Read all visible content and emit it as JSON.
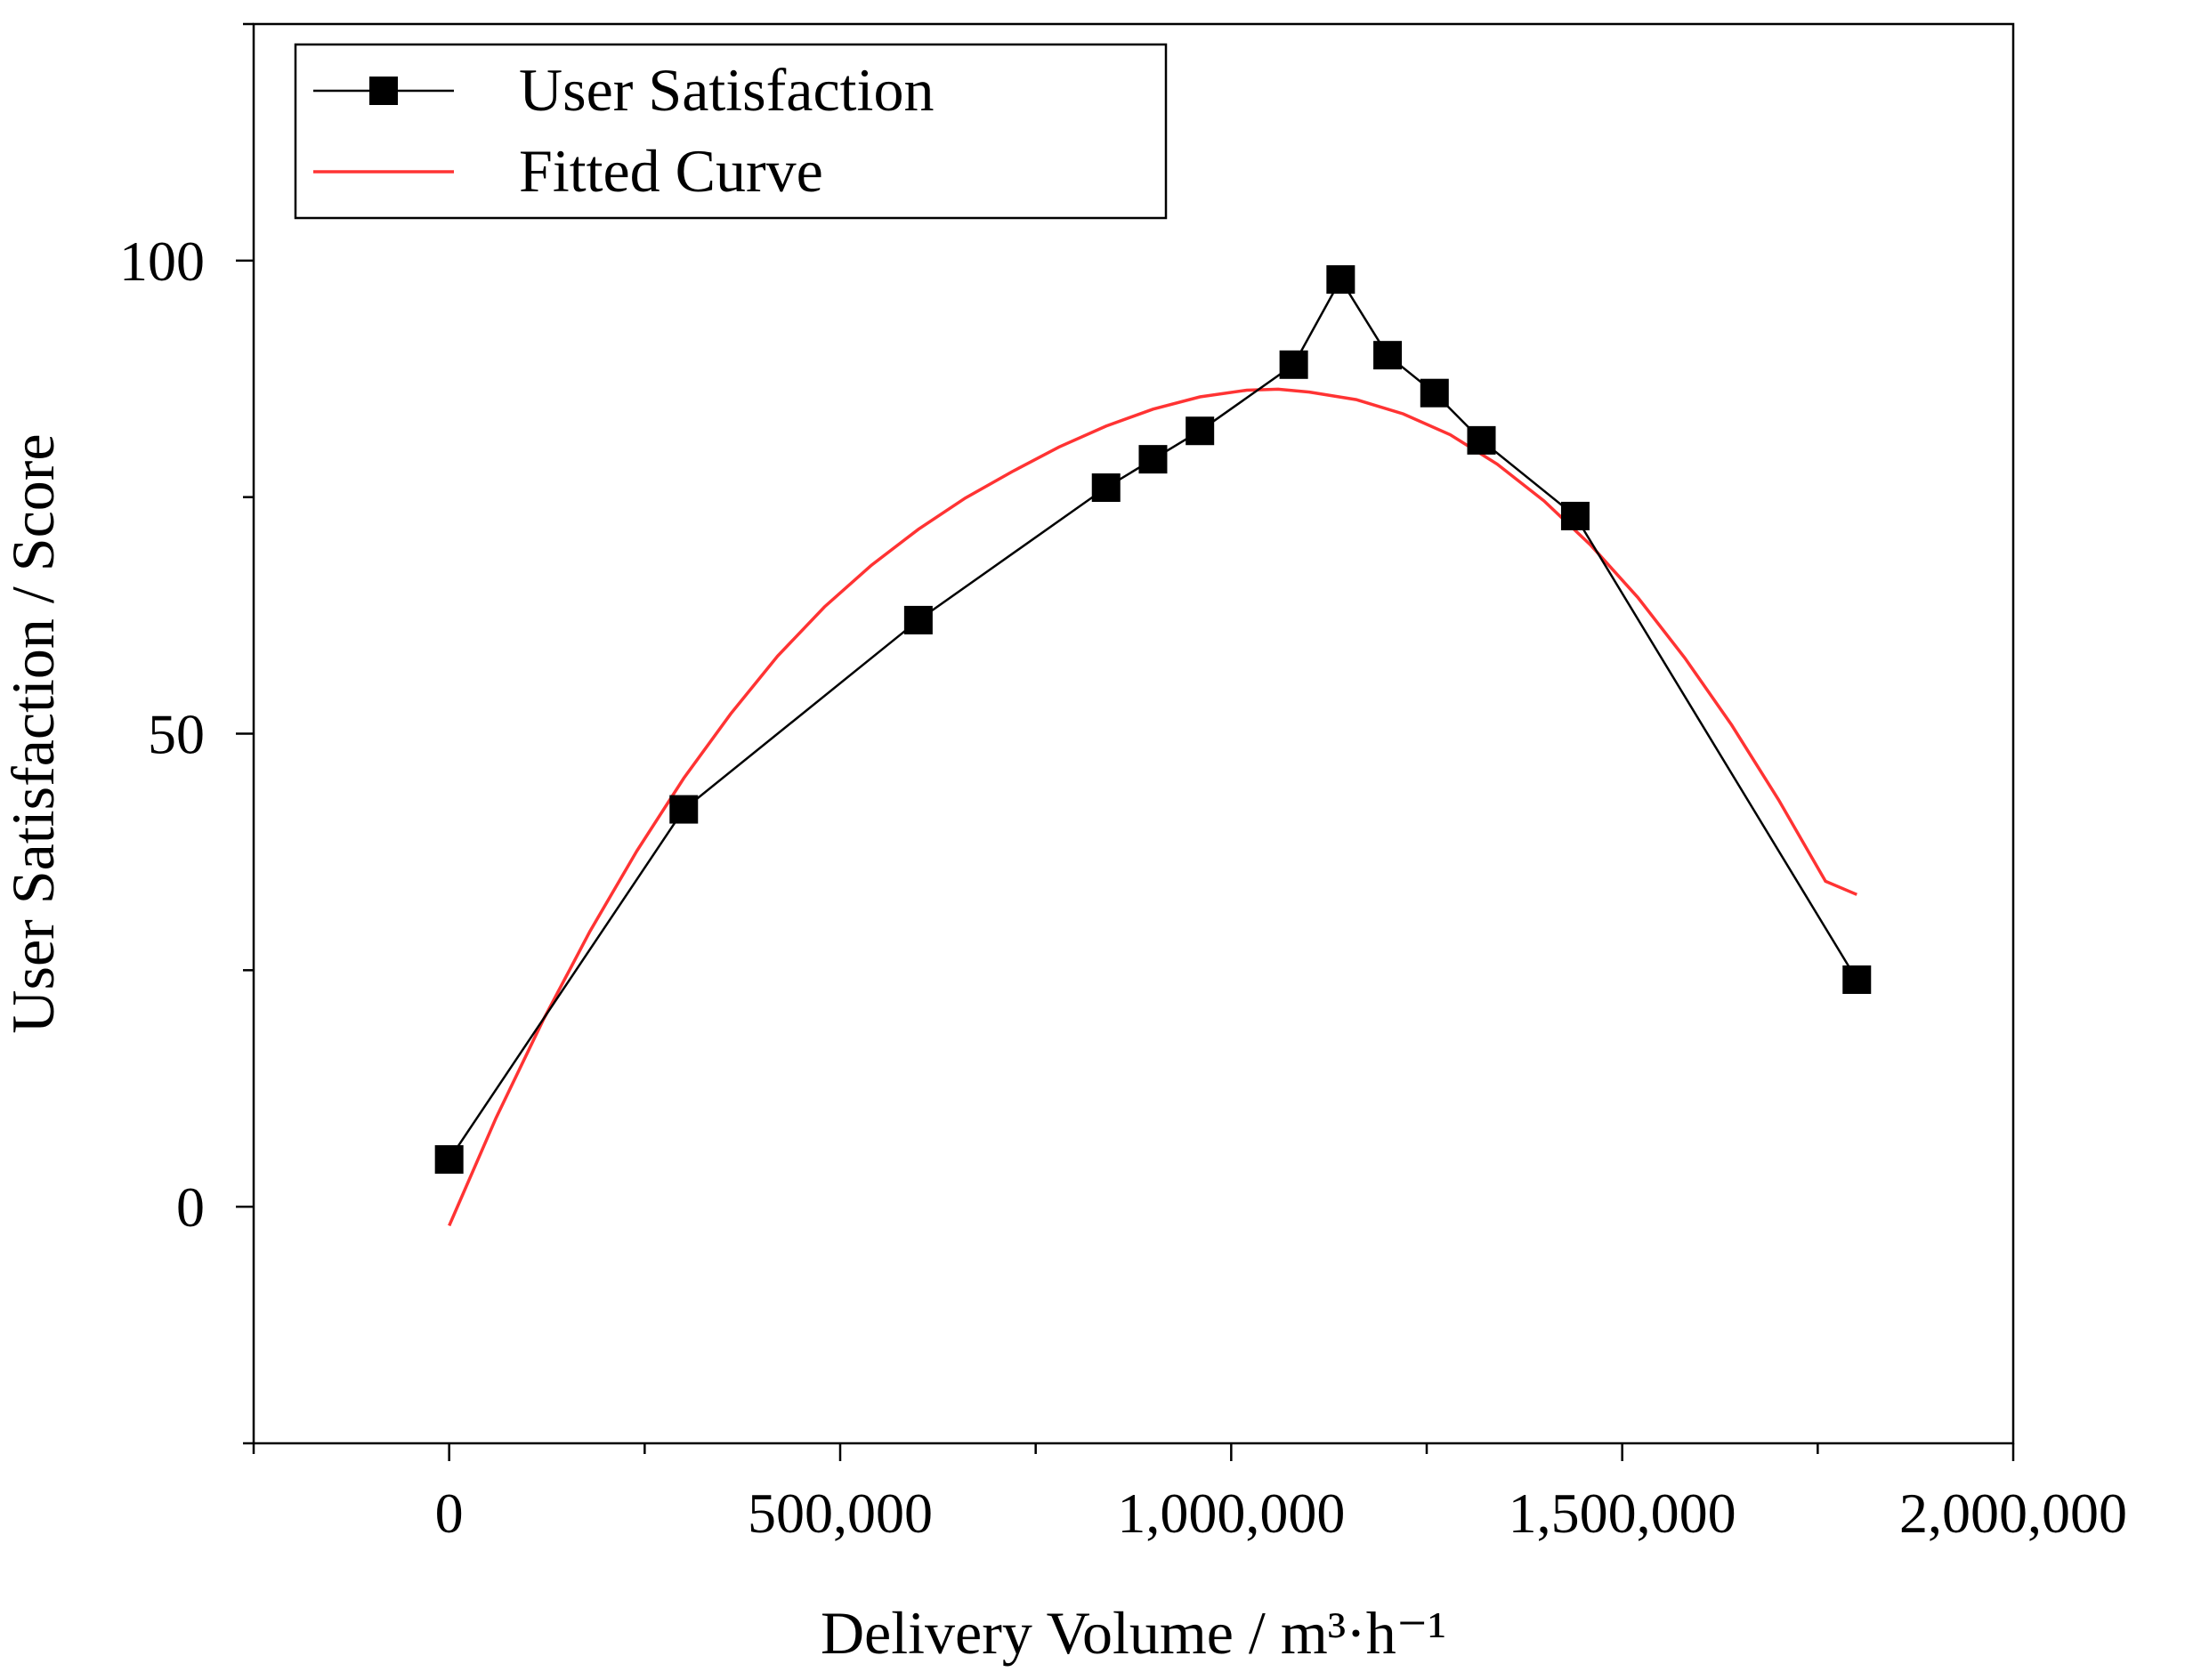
{
  "chart_data": {
    "type": "line",
    "title": "",
    "xlabel": "Delivery Volume / m³·h⁻¹",
    "ylabel": "User Satisfaction / Score",
    "xlim": [
      -250000,
      2000000
    ],
    "ylim": [
      -25,
      125
    ],
    "x_ticks": [
      0,
      500000,
      1000000,
      1500000,
      2000000
    ],
    "x_tick_labels": [
      "0",
      "500,000",
      "1,000,000",
      "1,500,000",
      "2,000,000"
    ],
    "y_ticks": [
      0,
      50,
      100
    ],
    "y_tick_labels": [
      "0",
      "50",
      "100"
    ],
    "grid": false,
    "legend_position": "top-left",
    "series": [
      {
        "name": "User Satisfaction",
        "style": "line-with-square-markers",
        "color": "#000000",
        "x": [
          0,
          300000,
          600000,
          840000,
          900000,
          960000,
          1080000,
          1140000,
          1200000,
          1260000,
          1320000,
          1440000,
          1800000
        ],
        "y": [
          5,
          42,
          62,
          76,
          79,
          82,
          89,
          98,
          90,
          86,
          81,
          73,
          24
        ]
      },
      {
        "name": "Fitted Curve",
        "style": "line",
        "color": "#ff3333",
        "x": [
          0,
          60000,
          120000,
          180000,
          240000,
          300000,
          360000,
          420000,
          480000,
          540000,
          600000,
          660000,
          720000,
          780000,
          840000,
          900000,
          960000,
          1020000,
          1060000,
          1100000,
          1160000,
          1220000,
          1280000,
          1340000,
          1400000,
          1460000,
          1520000,
          1580000,
          1640000,
          1700000,
          1760000,
          1800000
        ],
        "y": [
          -2,
          9.4,
          19.7,
          29.1,
          37.6,
          45.3,
          52.1,
          58.2,
          63.4,
          67.8,
          71.6,
          74.9,
          77.7,
          80.3,
          82.5,
          84.3,
          85.6,
          86.3,
          86.4,
          86.1,
          85.3,
          83.8,
          81.6,
          78.5,
          74.6,
          69.9,
          64.4,
          58.0,
          50.9,
          43.0,
          34.4,
          33
        ]
      }
    ]
  }
}
